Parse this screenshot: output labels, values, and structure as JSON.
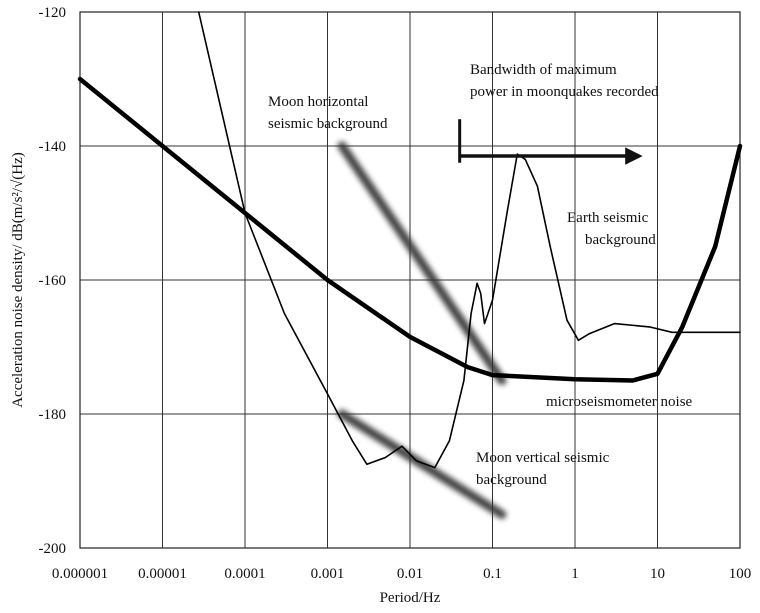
{
  "chart_data": {
    "type": "line",
    "xlabel": "Period/Hz",
    "ylabel": "Acceleration noise density/ dB(m/s²/√(Hz)",
    "x_scale": "log",
    "xlim": [
      1e-06,
      100
    ],
    "ylim": [
      -200,
      -120
    ],
    "grid": true,
    "x_ticks": [
      1e-06,
      1e-05,
      0.0001,
      0.001,
      0.01,
      0.1,
      1,
      10,
      100
    ],
    "x_tick_labels": [
      "0.000001",
      "0.00001",
      "0.0001",
      "0.001",
      "0.01",
      "0.1",
      "1",
      "10",
      "100"
    ],
    "y_ticks": [
      -200,
      -180,
      -160,
      -140,
      -120
    ],
    "y_tick_labels": [
      "-200",
      "-180",
      "-160",
      "-140",
      "-120"
    ],
    "series": [
      {
        "name": "microseismometer noise",
        "style": "thick",
        "color": "#000000",
        "points": [
          [
            1e-06,
            -130
          ],
          [
            1e-05,
            -140
          ],
          [
            0.0001,
            -150
          ],
          [
            0.001,
            -160
          ],
          [
            0.01,
            -168.5
          ],
          [
            0.05,
            -173
          ],
          [
            0.1,
            -174.2
          ],
          [
            1,
            -174.8
          ],
          [
            5,
            -175
          ],
          [
            10,
            -174
          ],
          [
            20,
            -167
          ],
          [
            50,
            -155
          ],
          [
            100,
            -140
          ]
        ]
      },
      {
        "name": "Earth seismic background",
        "style": "thin",
        "color": "#000000",
        "points": [
          [
            2.75e-05,
            -120
          ],
          [
            0.0001,
            -150
          ],
          [
            0.0003,
            -165
          ],
          [
            0.001,
            -177
          ],
          [
            0.002,
            -184
          ],
          [
            0.003,
            -187.5
          ],
          [
            0.005,
            -186.5
          ],
          [
            0.008,
            -184.8
          ],
          [
            0.012,
            -187
          ],
          [
            0.02,
            -188
          ],
          [
            0.03,
            -184
          ],
          [
            0.045,
            -175
          ],
          [
            0.055,
            -165
          ],
          [
            0.065,
            -160.5
          ],
          [
            0.072,
            -162
          ],
          [
            0.08,
            -166.5
          ],
          [
            0.1,
            -163
          ],
          [
            0.15,
            -150
          ],
          [
            0.2,
            -141.2
          ],
          [
            0.25,
            -142
          ],
          [
            0.35,
            -146
          ],
          [
            0.5,
            -155
          ],
          [
            0.8,
            -166
          ],
          [
            1.1,
            -169
          ],
          [
            1.5,
            -168
          ],
          [
            3,
            -166.5
          ],
          [
            8,
            -167
          ],
          [
            15,
            -167.8
          ],
          [
            100,
            -167.8
          ]
        ]
      },
      {
        "name": "Moon horizontal seismic background",
        "style": "blur",
        "color": "#333333",
        "points": [
          [
            0.0015,
            -140
          ],
          [
            0.13,
            -175
          ]
        ]
      },
      {
        "name": "Moon vertical seismic background",
        "style": "blur",
        "color": "#333333",
        "points": [
          [
            0.0015,
            -180
          ],
          [
            0.13,
            -195
          ]
        ]
      }
    ],
    "annotations": [
      {
        "lines": [
          "Moon horizontal",
          "seismic background"
        ]
      },
      {
        "lines": [
          "Bandwidth of maximum",
          "power in moonquakes recorded"
        ]
      },
      {
        "lines": [
          "Earth seismic",
          "background"
        ]
      },
      {
        "lines": [
          "microseismometer noise"
        ]
      },
      {
        "lines": [
          "Moon vertical seismic",
          "background"
        ]
      }
    ],
    "arrow": {
      "from": [
        0.04,
        -141.5
      ],
      "to": [
        6,
        -141.5
      ],
      "bar_x": 0.04,
      "bar_y": [
        -136,
        -142.5
      ]
    }
  }
}
